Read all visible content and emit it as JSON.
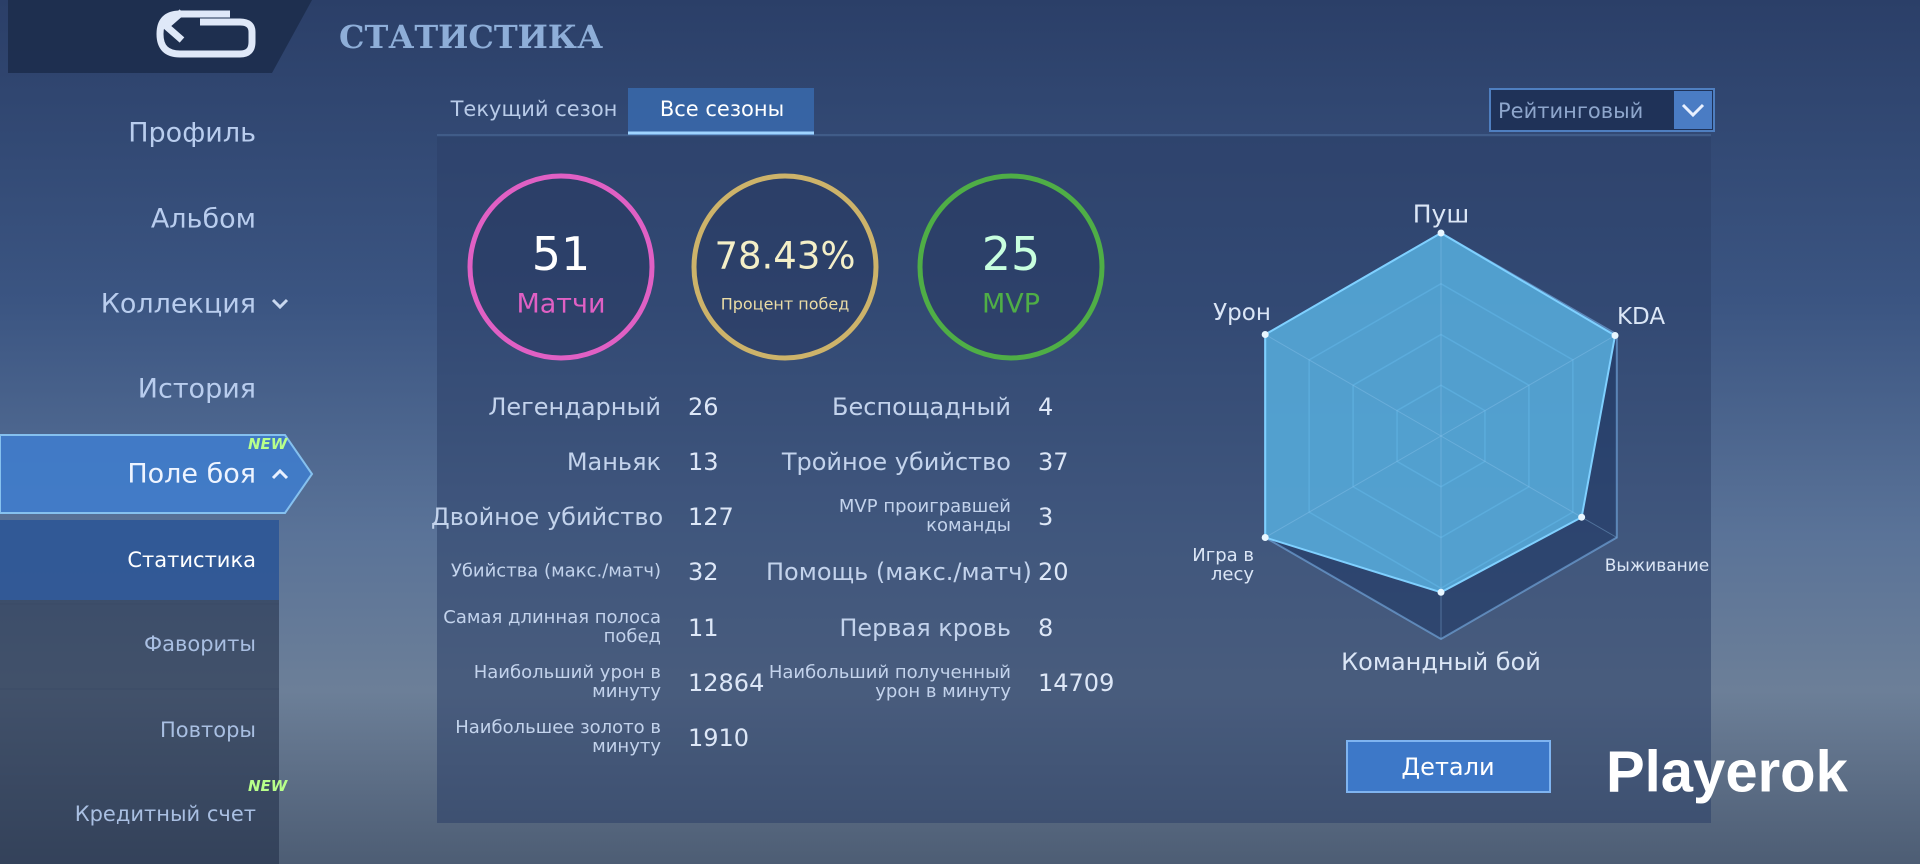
{
  "header": {
    "title": "СТАТИСТИКА"
  },
  "sidebar": {
    "items": [
      {
        "label": "Профиль"
      },
      {
        "label": "Альбом"
      },
      {
        "label": "Коллекция"
      },
      {
        "label": "История"
      },
      {
        "label": "Поле боя",
        "active": true,
        "badge": "NEW"
      }
    ],
    "subitems": [
      {
        "label": "Статистика",
        "active": true
      },
      {
        "label": "Фавориты"
      },
      {
        "label": "Повторы"
      },
      {
        "label": "Кредитный счет",
        "badge": "NEW"
      }
    ]
  },
  "tabs": [
    {
      "label": "Текущий сезон"
    },
    {
      "label": "Все сезоны",
      "active": true
    }
  ],
  "dropdown": {
    "label": "Рейтинговый"
  },
  "summary": [
    {
      "value": 51,
      "label": "Матчи",
      "color": "#e060c4"
    },
    {
      "value": 78.43,
      "value_label": "78.43%",
      "label": "Процент побед",
      "color": "#cdb36a"
    },
    {
      "value": 25,
      "label": "MVP",
      "color": "#4fae46"
    }
  ],
  "stats": {
    "left": [
      {
        "label": "Легендарный",
        "value": 26
      },
      {
        "label": "Маньяк",
        "value": 13
      },
      {
        "label": "Двойное убийство",
        "value": 127
      },
      {
        "label": "Убийства (макс./матч)",
        "value": 32
      },
      {
        "label": "Самая длинная полоса побед",
        "value": 11
      },
      {
        "label": "Наибольший урон в минуту",
        "value": 12864
      },
      {
        "label": "Наибольшее золото в минуту",
        "value": 1910
      }
    ],
    "right": [
      {
        "label": "Беспощадный",
        "value": 4
      },
      {
        "label": "Тройное убийство",
        "value": 37
      },
      {
        "label": "MVP проигравшей команды",
        "value": 3
      },
      {
        "label": "Помощь (макс./матч)",
        "value": 20
      },
      {
        "label": "Первая кровь",
        "value": 8
      },
      {
        "label": "Наибольший полученный урон в минуту",
        "value": 14709
      }
    ]
  },
  "radar": {
    "type": "radar",
    "axes": [
      "Пуш",
      "KDA",
      "Выживание",
      "Командный бой",
      "Игра в лесу",
      "Урон"
    ],
    "values": [
      1.0,
      0.99,
      0.8,
      0.77,
      1.0,
      1.0
    ],
    "rlim": [
      0,
      1
    ],
    "rticks": [
      0.25,
      0.5,
      0.75,
      1
    ],
    "color": "#5cb4e4"
  },
  "button": {
    "label": "Детали"
  },
  "watermark": "Playerok"
}
